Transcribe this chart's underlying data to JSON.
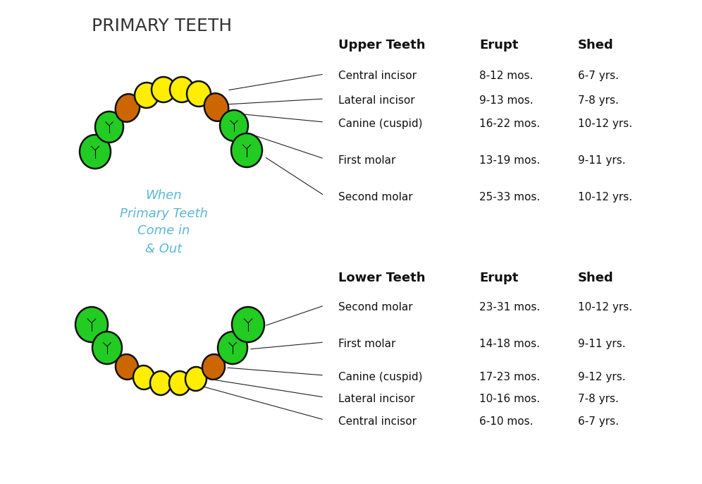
{
  "title": "PRIMARY TEETH",
  "center_text": "When\nPrimary Teeth\nCome in\n& Out",
  "background_color": "#ffffff",
  "title_color": "#333333",
  "center_text_color": "#5bb8d4",
  "upper_header": [
    "Upper Teeth",
    "Erupt",
    "Shed"
  ],
  "lower_header": [
    "Lower Teeth",
    "Erupt",
    "Shed"
  ],
  "upper_teeth": [
    {
      "name": "Central incisor",
      "erupt": "8-12 mos.",
      "shed": "6-7 yrs."
    },
    {
      "name": "Lateral incisor",
      "erupt": "9-13 mos.",
      "shed": "7-8 yrs."
    },
    {
      "name": "Canine (cuspid)",
      "erupt": "16-22 mos.",
      "shed": "10-12 yrs."
    },
    {
      "name": "First molar",
      "erupt": "13-19 mos.",
      "shed": "9-11 yrs."
    },
    {
      "name": "Second molar",
      "erupt": "25-33 mos.",
      "shed": "10-12 yrs."
    }
  ],
  "lower_teeth": [
    {
      "name": "Second molar",
      "erupt": "23-31 mos.",
      "shed": "10-12 yrs."
    },
    {
      "name": "First molar",
      "erupt": "14-18 mos.",
      "shed": "9-11 yrs."
    },
    {
      "name": "Canine (cuspid)",
      "erupt": "17-23 mos.",
      "shed": "9-12 yrs."
    },
    {
      "name": "Lateral incisor",
      "erupt": "10-16 mos.",
      "shed": "7-8 yrs."
    },
    {
      "name": "Central incisor",
      "erupt": "6-10 mos.",
      "shed": "6-7 yrs."
    }
  ],
  "green_color": "#22cc22",
  "yellow_color": "#ffee00",
  "orange_color": "#cc6600",
  "outline_color": "#111111",
  "line_color": "#222222"
}
